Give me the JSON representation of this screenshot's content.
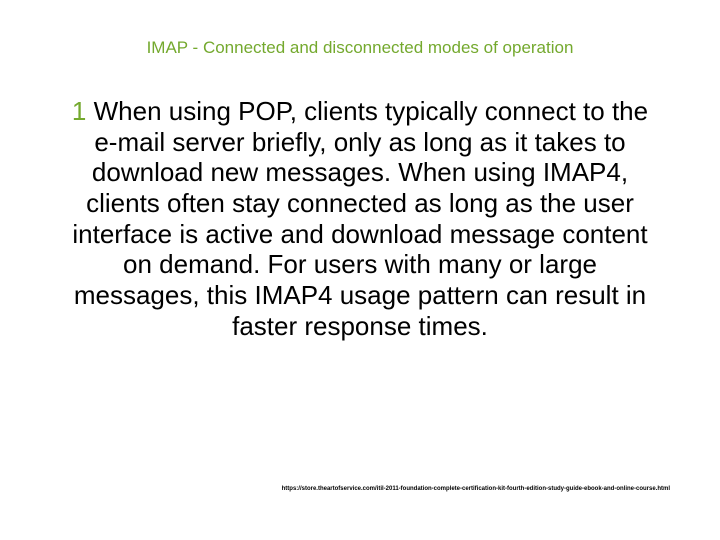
{
  "slide": {
    "title": "IMAP - Connected and disconnected modes of operation",
    "body": "When using POP, clients typically connect to the e-mail server briefly, only as long as it takes to download new messages. When using IMAP4, clients often stay connected as long as the user interface is active and download message content on demand.  For users with many or large messages, this IMAP4 usage pattern can result in faster response times.",
    "footer": "https://store.theartofservice.com/itil-2011-foundation-complete-certification-kit-fourth-edition-study-guide-ebook-and-online-course.html"
  },
  "style": {
    "background_color": "#ffffff",
    "title_color": "#74a92e",
    "title_fontsize": 17,
    "title_fontweight": 400,
    "bullet_color": "#74a92e",
    "bullet_fontsize": 26,
    "body_color": "#000000",
    "body_fontsize": 26,
    "body_fontweight": 400,
    "footer_color": "#000000",
    "footer_fontsize": 6
  }
}
